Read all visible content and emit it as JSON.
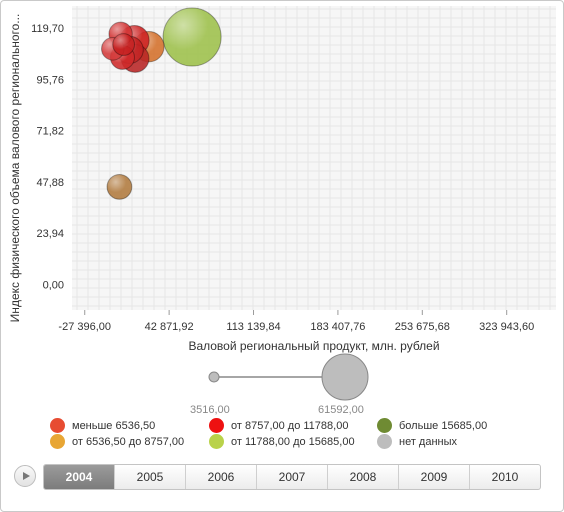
{
  "chart_data": {
    "type": "bubble",
    "xlabel": "Валовой региональный продукт, млн. рублей",
    "ylabel": "Индекс физического объема валового регионального...",
    "xlim": [
      -38000,
      365000
    ],
    "ylim": [
      -12,
      130
    ],
    "x_ticks": [
      "-27 396,00",
      "42 871,92",
      "113 139,84",
      "183 407,76",
      "253 675,68",
      "323 943,60"
    ],
    "x_tick_values": [
      -27396.0,
      42871.92,
      113139.84,
      183407.76,
      253675.68,
      323943.6
    ],
    "y_ticks": [
      "0,00",
      "23,94",
      "47,88",
      "71,82",
      "95,76",
      "119,70"
    ],
    "y_tick_values": [
      0,
      23.94,
      47.88,
      71.82,
      95.76,
      119.7
    ],
    "grid": true,
    "bubbles": [
      {
        "x": 62000,
        "y": 115.5,
        "size": 61592,
        "color": "#9dc04a"
      },
      {
        "x": 26000,
        "y": 111.0,
        "size": 14000,
        "color": "#d4702a"
      },
      {
        "x": 14000,
        "y": 114.0,
        "size": 13000,
        "color": "#cc1f1f"
      },
      {
        "x": 10000,
        "y": 109.5,
        "size": 11000,
        "color": "#c22222"
      },
      {
        "x": 14500,
        "y": 105.5,
        "size": 11500,
        "color": "#b82424"
      },
      {
        "x": 4000,
        "y": 106.0,
        "size": 8500,
        "color": "#cf2a2a"
      },
      {
        "x": -4000,
        "y": 110.0,
        "size": 7500,
        "color": "#d43a3a"
      },
      {
        "x": 2500,
        "y": 117.0,
        "size": 8000,
        "color": "#d23030"
      },
      {
        "x": 5000,
        "y": 112.0,
        "size": 7000,
        "color": "#c52020"
      },
      {
        "x": 1500,
        "y": 45.5,
        "size": 9000,
        "color": "#b07a3e"
      }
    ]
  },
  "size_legend": {
    "min": "3516,00",
    "max": "61592,00"
  },
  "legend": [
    {
      "label": "меньше 6536,50",
      "color": "#e74c32"
    },
    {
      "label": "от 8757,00 до 11788,00",
      "color": "#ee1111"
    },
    {
      "label": "больше 15685,00",
      "color": "#6f8b33"
    },
    {
      "label": "от 6536,50 до 8757,00",
      "color": "#e8a634"
    },
    {
      "label": "от 11788,00 до 15685,00",
      "color": "#b9d24a"
    },
    {
      "label": "нет данных",
      "color": "#bdbdbd"
    }
  ],
  "timeline": {
    "years": [
      "2004",
      "2005",
      "2006",
      "2007",
      "2008",
      "2009",
      "2010"
    ],
    "active": "2004"
  }
}
